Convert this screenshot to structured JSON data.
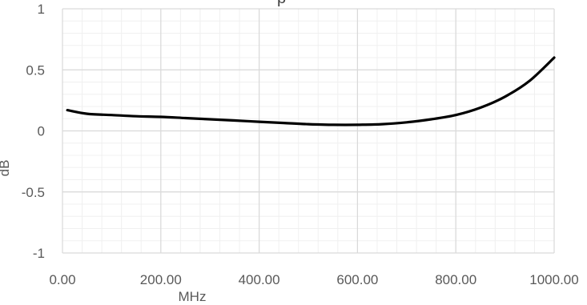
{
  "chart_data": {
    "type": "line",
    "title_fragment": "p",
    "xlabel": "MHz",
    "ylabel": "dB",
    "xlim": [
      0,
      1000
    ],
    "ylim": [
      -1,
      1
    ],
    "x_ticks": [
      0,
      200,
      400,
      600,
      800,
      1000
    ],
    "x_tick_labels": [
      "0.00",
      "200.00",
      "400.00",
      "600.00",
      "800.00",
      "1000.00"
    ],
    "y_ticks": [
      -1,
      -0.5,
      0,
      0.5,
      1
    ],
    "y_tick_labels": [
      "-1",
      "-0.5",
      "0",
      "0.5",
      "1"
    ],
    "grid": true,
    "minor_grid": true,
    "legend": "none",
    "series": [
      {
        "color": "#000000",
        "x": [
          10,
          50,
          100,
          150,
          200,
          250,
          300,
          350,
          400,
          450,
          500,
          550,
          600,
          650,
          700,
          750,
          800,
          850,
          900,
          950,
          1000
        ],
        "y": [
          0.17,
          0.14,
          0.13,
          0.12,
          0.115,
          0.105,
          0.095,
          0.085,
          0.075,
          0.065,
          0.055,
          0.05,
          0.05,
          0.055,
          0.07,
          0.095,
          0.13,
          0.19,
          0.28,
          0.41,
          0.6
        ]
      }
    ]
  }
}
